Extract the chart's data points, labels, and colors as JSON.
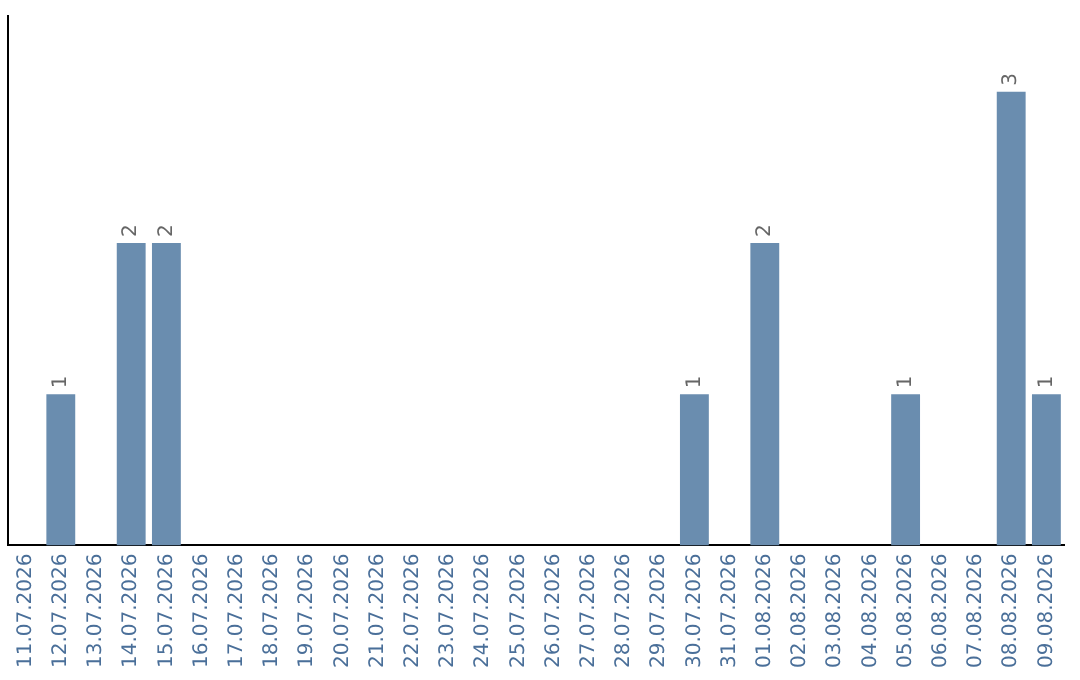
{
  "chart_data": {
    "type": "bar",
    "categories": [
      "11.07.2026",
      "12.07.2026",
      "13.07.2026",
      "14.07.2026",
      "15.07.2026",
      "16.07.2026",
      "17.07.2026",
      "18.07.2026",
      "19.07.2026",
      "20.07.2026",
      "21.07.2026",
      "22.07.2026",
      "23.07.2026",
      "24.07.2026",
      "25.07.2026",
      "26.07.2026",
      "27.07.2026",
      "28.07.2026",
      "29.07.2026",
      "30.07.2026",
      "31.07.2026",
      "01.08.2026",
      "02.08.2026",
      "03.08.2026",
      "04.08.2026",
      "05.08.2026",
      "06.08.2026",
      "07.08.2026",
      "08.08.2026",
      "09.08.2026"
    ],
    "values": [
      0,
      1,
      0,
      2,
      2,
      0,
      0,
      0,
      0,
      0,
      0,
      0,
      0,
      0,
      0,
      0,
      0,
      0,
      0,
      1,
      0,
      2,
      0,
      0,
      0,
      1,
      0,
      0,
      3,
      1
    ],
    "value_labels": [
      null,
      "1",
      null,
      "2",
      "2",
      null,
      null,
      null,
      null,
      null,
      null,
      null,
      null,
      null,
      null,
      null,
      null,
      null,
      null,
      "1",
      null,
      "2",
      null,
      null,
      null,
      "1",
      null,
      null,
      "3",
      "1"
    ],
    "color": "#6a8daf",
    "grid": false,
    "legend": false,
    "tick_labels": "x"
  }
}
